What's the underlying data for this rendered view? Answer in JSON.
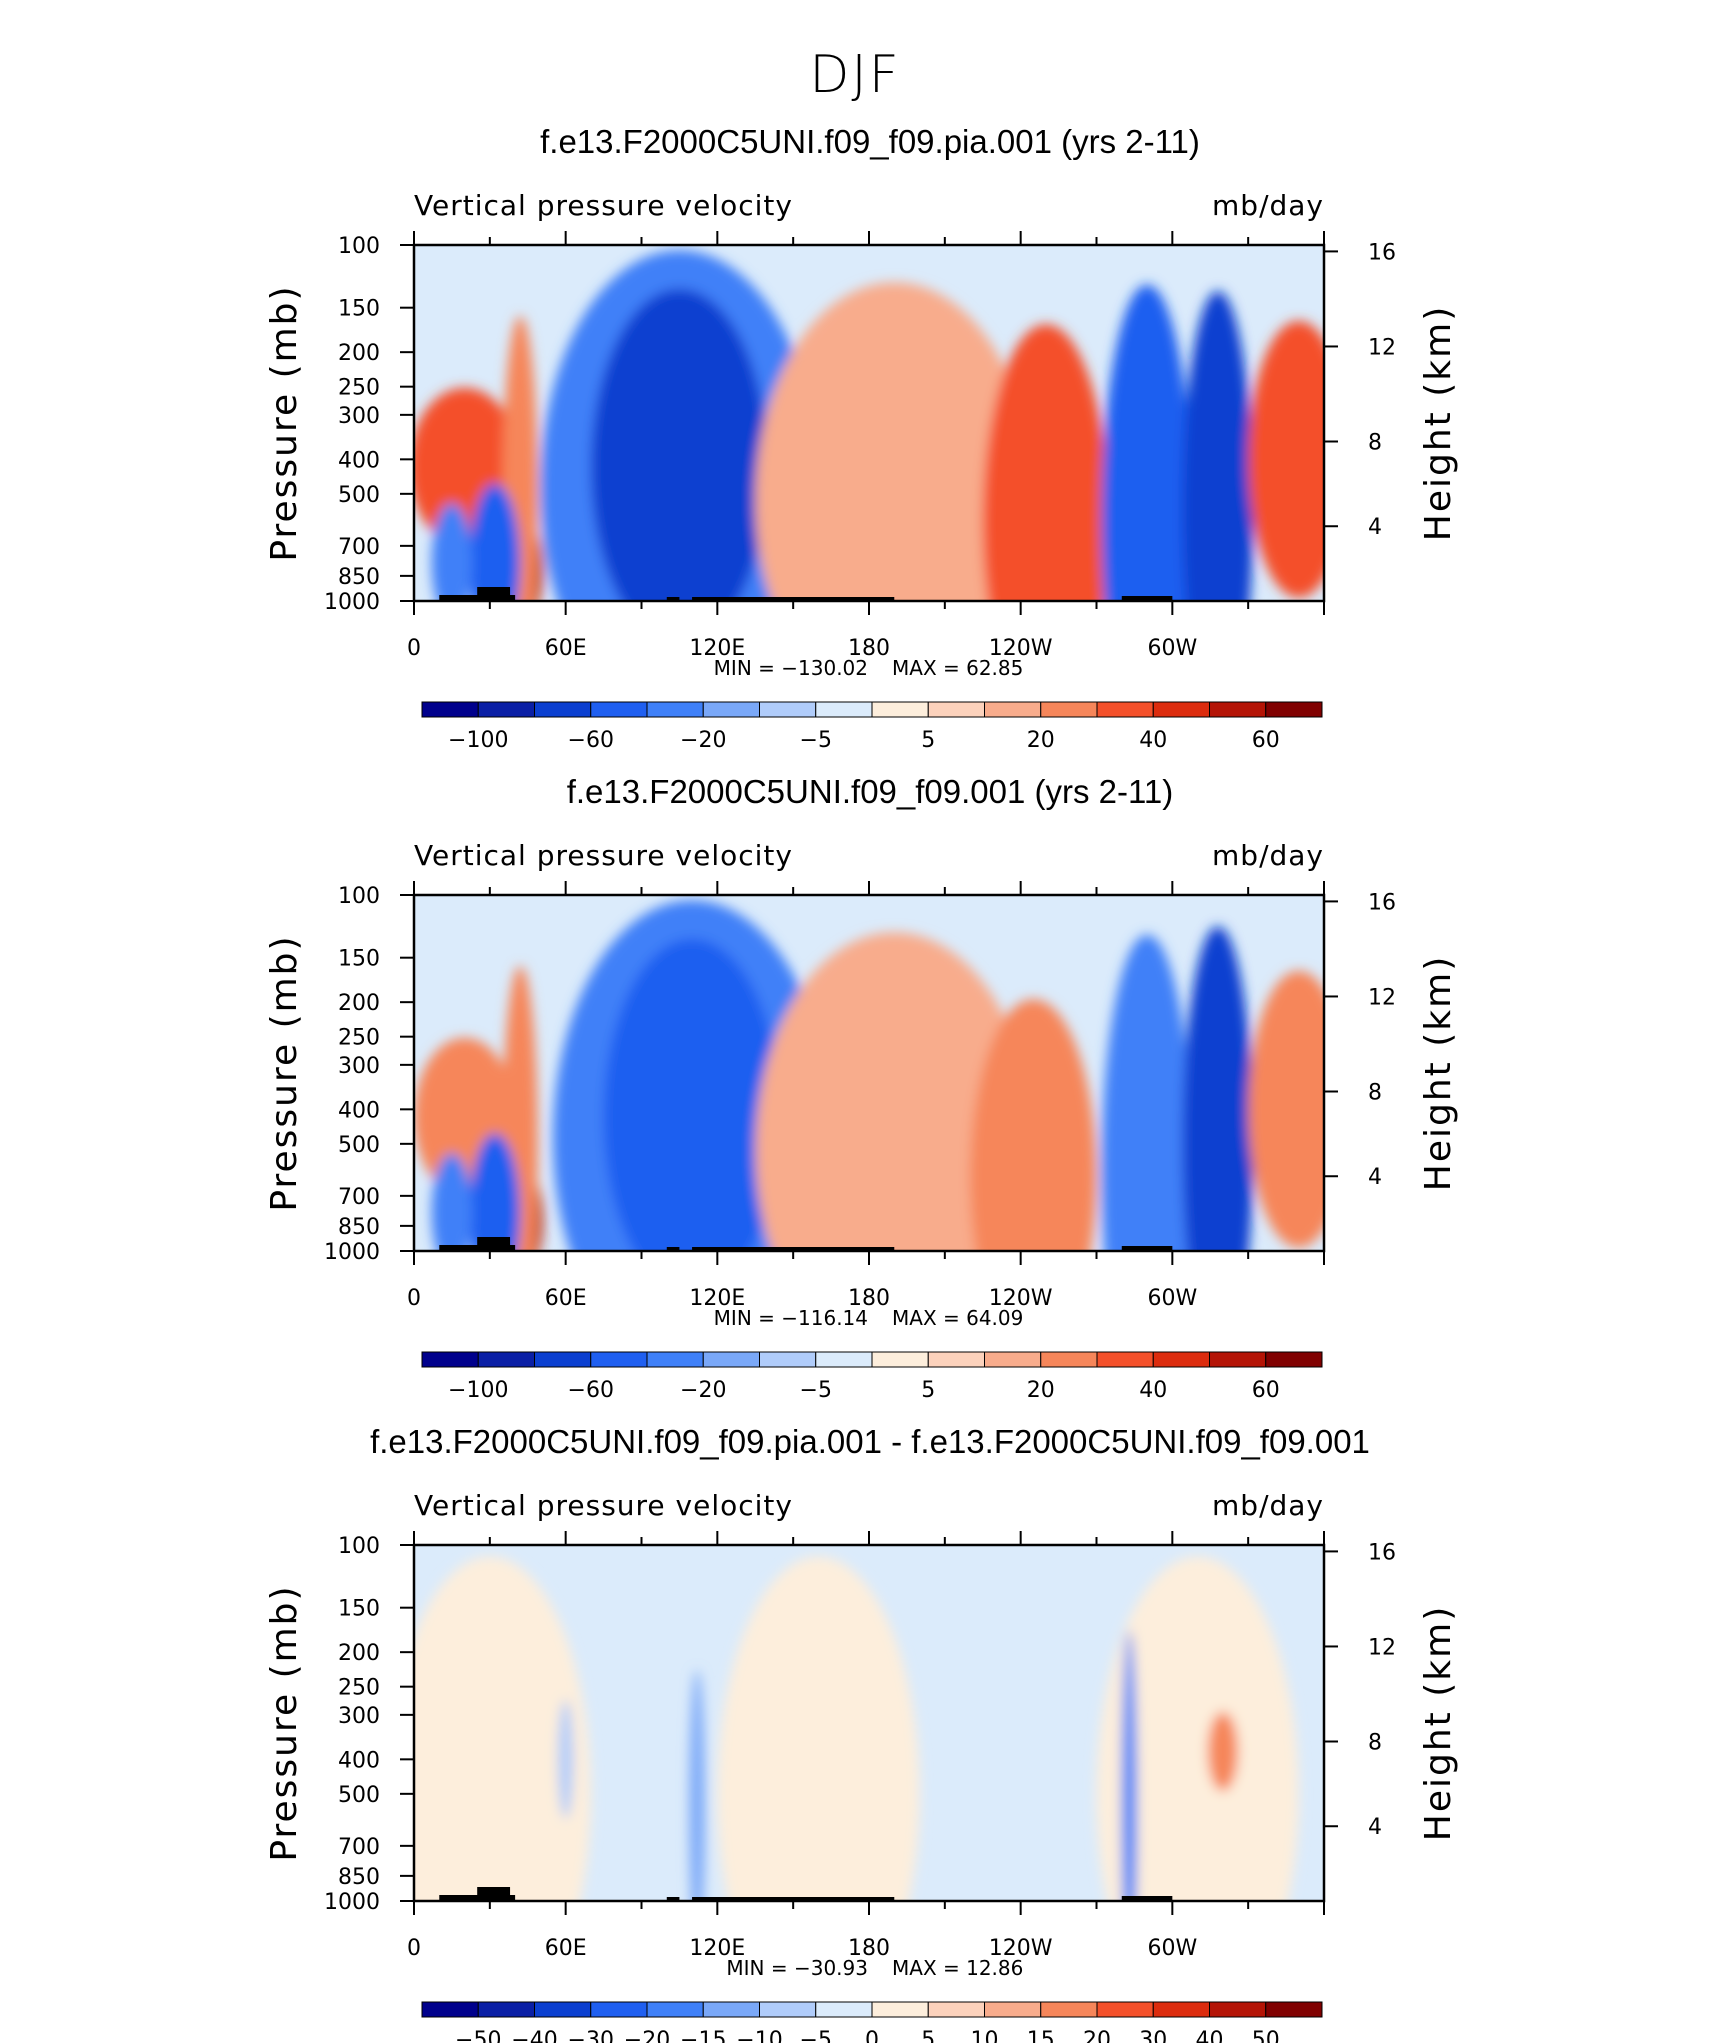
{
  "page_title": "DJF",
  "chart_data": [
    {
      "type": "heatmap",
      "title": "f.e13.F2000C5UNI.f09_f09.pia.001 (yrs 2-11)",
      "subtitle_left": "Vertical pressure velocity",
      "subtitle_right": "mb/day",
      "ylabel": "Pressure (mb)",
      "ylabel_right": "Height (km)",
      "x_ticks": [
        "0",
        "60E",
        "120E",
        "180",
        "120W",
        "60W"
      ],
      "y_ticks": [
        "100",
        "150",
        "200",
        "250",
        "300",
        "400",
        "500",
        "700",
        "850",
        "1000"
      ],
      "y_ticks_right": [
        "16",
        "12",
        "8",
        "4"
      ],
      "ylim": [
        1000,
        100
      ],
      "xlim": [
        0,
        360
      ],
      "min_label": "MIN = −130.02",
      "max_label": "MAX = 62.85",
      "colorbar_ticks": [
        "−100",
        "−60",
        "−20",
        "−5",
        "5",
        "20",
        "40",
        "60"
      ],
      "colors": [
        "#00008c",
        "#0a1fa5",
        "#0b3fd0",
        "#1f5ff0",
        "#3f80f8",
        "#7aa8f8",
        "#b0ccfa",
        "#dbebfb",
        "#fdeedc",
        "#fcd2bc",
        "#f8ac8c",
        "#f6865a",
        "#f4502a",
        "#dc2c0e",
        "#b41406",
        "#800000"
      ],
      "regions": [
        {
          "lon": 20,
          "p": 420,
          "w": 22,
          "h": 200,
          "level": 12
        },
        {
          "lon": 45,
          "p": 820,
          "w": 6,
          "h": 120,
          "level": 14
        },
        {
          "lon": 42,
          "p": 500,
          "w": 7,
          "h": 450,
          "level": 11
        },
        {
          "lon": 32,
          "p": 780,
          "w": 10,
          "h": 200,
          "level": 3
        },
        {
          "lon": 15,
          "p": 780,
          "w": 8,
          "h": 150,
          "level": 4
        },
        {
          "lon": 105,
          "p": 480,
          "w": 55,
          "h": 600,
          "level": 4
        },
        {
          "lon": 105,
          "p": 420,
          "w": 35,
          "h": 450,
          "level": 2
        },
        {
          "lon": 190,
          "p": 520,
          "w": 55,
          "h": 550,
          "level": 10
        },
        {
          "lon": 250,
          "p": 600,
          "w": 25,
          "h": 500,
          "level": 12
        },
        {
          "lon": 290,
          "p": 600,
          "w": 18,
          "h": 600,
          "level": 3
        },
        {
          "lon": 318,
          "p": 550,
          "w": 14,
          "h": 550,
          "level": 2
        },
        {
          "lon": 350,
          "p": 400,
          "w": 20,
          "h": 350,
          "level": 12
        }
      ]
    },
    {
      "type": "heatmap",
      "title": "f.e13.F2000C5UNI.f09_f09.001 (yrs 2-11)",
      "subtitle_left": "Vertical pressure velocity",
      "subtitle_right": "mb/day",
      "ylabel": "Pressure (mb)",
      "ylabel_right": "Height (km)",
      "x_ticks": [
        "0",
        "60E",
        "120E",
        "180",
        "120W",
        "60W"
      ],
      "y_ticks": [
        "100",
        "150",
        "200",
        "250",
        "300",
        "400",
        "500",
        "700",
        "850",
        "1000"
      ],
      "y_ticks_right": [
        "16",
        "12",
        "8",
        "4"
      ],
      "ylim": [
        1000,
        100
      ],
      "xlim": [
        0,
        360
      ],
      "min_label": "MIN = −116.14",
      "max_label": "MAX = 64.09",
      "colorbar_ticks": [
        "−100",
        "−60",
        "−20",
        "−5",
        "5",
        "20",
        "40",
        "60"
      ],
      "colors": [
        "#00008c",
        "#0a1fa5",
        "#0b3fd0",
        "#1f5ff0",
        "#3f80f8",
        "#7aa8f8",
        "#b0ccfa",
        "#dbebfb",
        "#fdeedc",
        "#fcd2bc",
        "#f8ac8c",
        "#f6865a",
        "#f4502a",
        "#dc2c0e",
        "#b41406",
        "#800000"
      ],
      "regions": [
        {
          "lon": 20,
          "p": 420,
          "w": 20,
          "h": 200,
          "level": 11
        },
        {
          "lon": 45,
          "p": 820,
          "w": 6,
          "h": 120,
          "level": 14
        },
        {
          "lon": 42,
          "p": 500,
          "w": 7,
          "h": 450,
          "level": 11
        },
        {
          "lon": 32,
          "p": 780,
          "w": 10,
          "h": 200,
          "level": 3
        },
        {
          "lon": 15,
          "p": 780,
          "w": 8,
          "h": 150,
          "level": 4
        },
        {
          "lon": 110,
          "p": 480,
          "w": 55,
          "h": 600,
          "level": 4
        },
        {
          "lon": 110,
          "p": 420,
          "w": 35,
          "h": 450,
          "level": 3
        },
        {
          "lon": 190,
          "p": 520,
          "w": 55,
          "h": 550,
          "level": 10
        },
        {
          "lon": 245,
          "p": 620,
          "w": 25,
          "h": 450,
          "level": 11
        },
        {
          "lon": 290,
          "p": 600,
          "w": 18,
          "h": 600,
          "level": 4
        },
        {
          "lon": 318,
          "p": 500,
          "w": 14,
          "h": 550,
          "level": 2
        },
        {
          "lon": 350,
          "p": 400,
          "w": 20,
          "h": 350,
          "level": 11
        }
      ]
    },
    {
      "type": "heatmap",
      "title": "f.e13.F2000C5UNI.f09_f09.pia.001 - f.e13.F2000C5UNI.f09_f09.001",
      "subtitle_left": "Vertical pressure velocity",
      "subtitle_right": "mb/day",
      "ylabel": "Pressure (mb)",
      "ylabel_right": "Height (km)",
      "x_ticks": [
        "0",
        "60E",
        "120E",
        "180",
        "120W",
        "60W"
      ],
      "y_ticks": [
        "100",
        "150",
        "200",
        "250",
        "300",
        "400",
        "500",
        "700",
        "850",
        "1000"
      ],
      "y_ticks_right": [
        "16",
        "12",
        "8",
        "4"
      ],
      "ylim": [
        1000,
        100
      ],
      "xlim": [
        0,
        360
      ],
      "min_label": "MIN = −30.93",
      "max_label": "MAX = 12.86",
      "colorbar_ticks": [
        "−50",
        "−40",
        "−30",
        "−20",
        "−15",
        "−10",
        "−5",
        "0",
        "5",
        "10",
        "15",
        "20",
        "30",
        "40",
        "50"
      ],
      "colors": [
        "#00008c",
        "#0a1fa5",
        "#0b3fd0",
        "#1f5ff0",
        "#3f80f8",
        "#7aa8f8",
        "#b0ccfa",
        "#dbebfb",
        "#fdeedc",
        "#fcd2bc",
        "#f8ac8c",
        "#f6865a",
        "#f4502a",
        "#dc2c0e",
        "#b41406",
        "#800000"
      ],
      "regions": [
        {
          "lon": 30,
          "p": 500,
          "w": 40,
          "h": 600,
          "level": 8
        },
        {
          "lon": 160,
          "p": 500,
          "w": 40,
          "h": 600,
          "level": 8
        },
        {
          "lon": 310,
          "p": 500,
          "w": 40,
          "h": 600,
          "level": 8
        },
        {
          "lon": 112,
          "p": 550,
          "w": 3,
          "h": 350,
          "level": 5
        },
        {
          "lon": 283,
          "p": 550,
          "w": 3,
          "h": 450,
          "level": 4
        },
        {
          "lon": 320,
          "p": 380,
          "w": 6,
          "h": 100,
          "level": 11
        },
        {
          "lon": 60,
          "p": 400,
          "w": 3,
          "h": 150,
          "level": 6
        }
      ]
    }
  ]
}
